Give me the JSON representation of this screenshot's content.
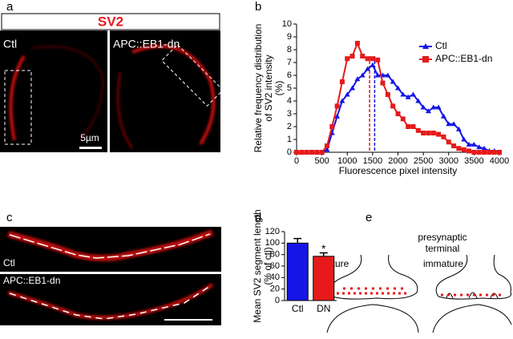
{
  "panel_labels": [
    "a",
    "b",
    "c",
    "d",
    "e"
  ],
  "panel_a": {
    "header": "SV2",
    "left_label": "Ctl",
    "right_label": "APC::EB1-dn",
    "scale_bar": "5µm"
  },
  "panel_c": {
    "top_label": "Ctl",
    "bottom_label": "APC::EB1-dn"
  },
  "panel_e": {
    "title": [
      "presynaptic",
      "terminal"
    ],
    "left_label": "mature",
    "right_label": "immature"
  },
  "chart_data": [
    {
      "type": "line",
      "y_label": [
        "Relative frequency distribution",
        "of SV2 intensity",
        "(%)"
      ],
      "x_label": "Fluorescence pixel intensity",
      "x": [
        0,
        100,
        200,
        300,
        400,
        500,
        600,
        700,
        800,
        900,
        1000,
        1100,
        1200,
        1300,
        1400,
        1500,
        1600,
        1700,
        1800,
        1900,
        2000,
        2100,
        2200,
        2300,
        2400,
        2500,
        2600,
        2700,
        2800,
        2900,
        3000,
        3100,
        3200,
        3300,
        3400,
        3500,
        3600,
        3700,
        3800,
        3900,
        4000
      ],
      "series": [
        {
          "name": "Ctl",
          "color": "#1515e6",
          "marker": "triangle",
          "values": [
            0,
            0,
            0,
            0,
            0,
            0,
            0.2,
            1.5,
            2.8,
            4,
            4.5,
            5,
            5.7,
            6,
            6.5,
            6.8,
            6,
            6,
            6,
            5.5,
            5,
            4.5,
            4.3,
            4.5,
            4,
            3.5,
            3.2,
            3.5,
            3.5,
            2.8,
            2.2,
            2.2,
            1.8,
            1,
            0.6,
            0.6,
            0.4,
            0.3,
            0.1,
            0.1,
            0
          ]
        },
        {
          "name": "APC::EB1-dn",
          "color": "#e61a1a",
          "marker": "square",
          "values": [
            0,
            0,
            0,
            0,
            0,
            0,
            0.5,
            2,
            3.6,
            5.5,
            7.3,
            7.5,
            8.5,
            7.5,
            7.3,
            7.3,
            7.2,
            5.4,
            4.5,
            3.6,
            3,
            2.6,
            2,
            2,
            1.7,
            1.5,
            1.5,
            1.5,
            1.4,
            1.2,
            0.8,
            0.5,
            0.3,
            0.2,
            0.1,
            0,
            0,
            0,
            0,
            0,
            0
          ]
        }
      ],
      "reference_lines": [
        {
          "x": 1440,
          "color": "#e61a1a"
        },
        {
          "x": 1540,
          "color": "#1515e6"
        }
      ],
      "xlim": [
        0,
        4000
      ],
      "xticks": [
        0,
        500,
        1000,
        1500,
        2000,
        2500,
        3000,
        3500,
        4000
      ],
      "ylim": [
        0,
        10
      ],
      "yticks": [
        0,
        1,
        2,
        3,
        4,
        5,
        6,
        7,
        8,
        9,
        10
      ],
      "legend": "upper right"
    },
    {
      "type": "bar",
      "y_label": [
        "Mean SV2 segment length",
        "(% of ctl)"
      ],
      "categories": [
        "Ctl",
        "DN"
      ],
      "values": [
        100,
        77
      ],
      "errors": [
        8,
        6
      ],
      "colors": [
        "#1515e6",
        "#e61a1a"
      ],
      "annotations": [
        {
          "category": 1,
          "text": "*"
        }
      ],
      "ylim": [
        0,
        120
      ],
      "yticks": [
        0,
        20,
        40,
        60,
        80,
        100,
        120
      ]
    }
  ]
}
